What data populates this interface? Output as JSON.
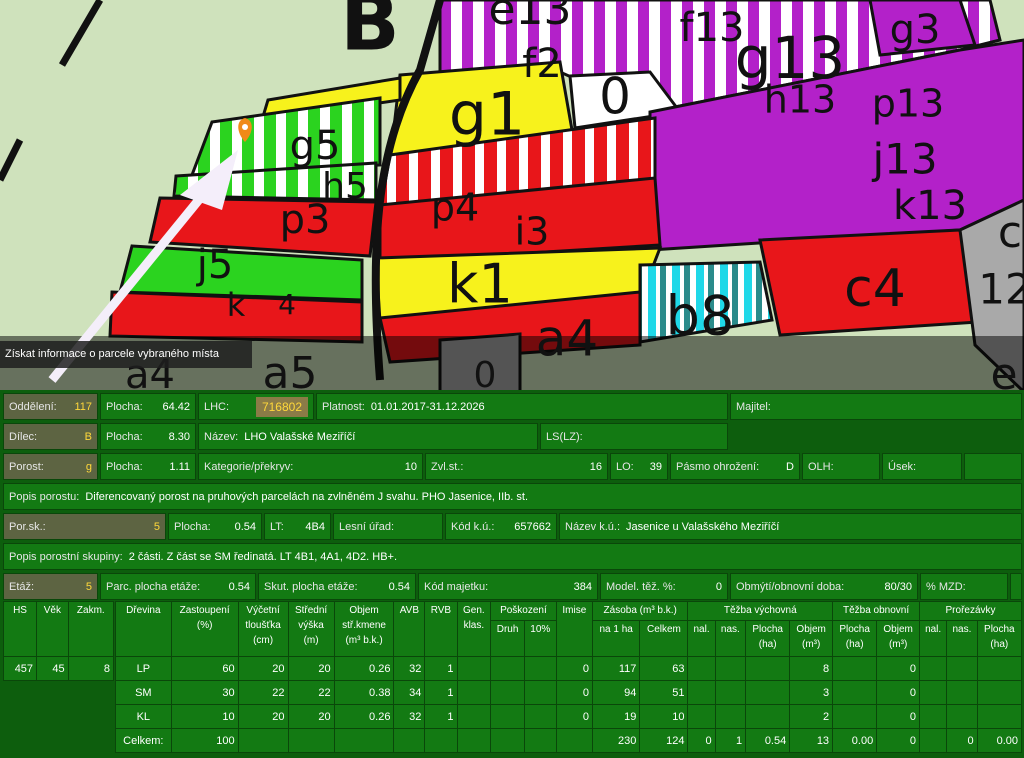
{
  "map": {
    "labels": [
      "B",
      "e13",
      "f13",
      "g13",
      "g3",
      "f2",
      "0",
      "g1",
      "h13",
      "p13",
      "g5",
      "h5",
      "j13",
      "p3",
      "p4",
      "i3",
      "k13",
      "c",
      "j5",
      "k1",
      "12",
      "b8",
      "c4",
      "k",
      "4",
      "a4",
      "a4",
      "a5",
      "0",
      "e"
    ]
  },
  "tooltip": "Získat informace o parcele vybraného místa",
  "fields": [
    {
      "label": "Oddělení:",
      "value": 117
    },
    {
      "label": "Plocha:",
      "value": 64.42
    },
    {
      "label": "LHC:",
      "value": 716802
    },
    {
      "label": "Platnost:",
      "value": "01.01.2017-31.12.2026"
    },
    {
      "label": "Majitel:"
    },
    {
      "label": "Dílec:",
      "value": "B"
    },
    {
      "label": "Plocha:",
      "value": "8.30"
    },
    {
      "label": "Název:",
      "value": "LHO Valašské Meziříčí"
    },
    {
      "label": "LS(LZ):"
    },
    {
      "label": "Porost:",
      "value": "g"
    },
    {
      "label": "Plocha:",
      "value": 1.11
    },
    {
      "label": "Kategorie/překryv:",
      "value": 10
    },
    {
      "label": "Zvl.st.:",
      "value": 16
    },
    {
      "label": "LO:",
      "value": 39
    },
    {
      "label": "Pásmo ohrožení:",
      "value": "D"
    },
    {
      "label": "OLH:"
    },
    {
      "label": "Úsek:"
    },
    {
      "label": "Popis porostu:",
      "value": "Diferencovaný porost na pruhových parcelách na zvlněném J svahu. PHO Jasenice, IIb. st."
    },
    {
      "label": "Por.sk.:",
      "value": 5
    },
    {
      "label": "Plocha:",
      "value": 0.54
    },
    {
      "label": "LT:",
      "value": "4B4"
    },
    {
      "label": "Lesní úřad:"
    },
    {
      "label": "Kód k.ú.:",
      "value": 657662
    },
    {
      "label": "Název k.ú.:",
      "value": "Jasenice u Valašského Meziříčí"
    },
    {
      "label": "Popis porostní skupiny:",
      "value": "2 části. Z část se SM ředinatá. LT 4B1, 4A1, 4D2. HB+."
    },
    {
      "label": "Etáž:",
      "value": 5
    },
    {
      "label": "Parc. plocha etáže:",
      "value": 0.54
    },
    {
      "label": "Skut. plocha etáže:",
      "value": 0.54
    },
    {
      "label": "Kód majetku:",
      "value": 384
    },
    {
      "label": "Model. těž. %:",
      "value": 0
    },
    {
      "label": "Obmýtí/obnovní doba:",
      "value": "80/30"
    },
    {
      "label": "% MZD:"
    }
  ],
  "side_table": {
    "columns": [
      "HS",
      "Věk",
      "Zakm."
    ],
    "row": [
      457,
      45,
      8
    ]
  },
  "table": {
    "head": [
      "Dřevina",
      "Zastoupení\n(%)",
      "Výčetní\ntloušťka\n(cm)",
      "Střední\nvýška\n(m)",
      "Objem\nstř.kmene\n(m³ b.k.)",
      "AVB",
      "RVB",
      "Gen.\nklas.",
      "Poškození",
      "Imise",
      "Zásoba (m³ b.k.)",
      "Těžba výchovná",
      "Těžba obnovní",
      "Prořezávky",
      "Druh",
      "10%",
      "na 1 ha",
      "Celkem",
      "nal.",
      "nas.",
      "Plocha\n(ha)",
      "Objem\n(m³)",
      "Plocha\n(ha)",
      "Objem\n(m³)",
      "nal.",
      "nas.",
      "Plocha\n(ha)"
    ],
    "rows": [
      [
        "LP",
        60,
        20,
        20,
        0.26,
        32,
        1,
        null,
        null,
        null,
        0,
        117,
        63,
        null,
        null,
        null,
        8,
        null,
        0,
        null,
        null,
        null
      ],
      [
        "SM",
        30,
        22,
        22,
        0.38,
        34,
        1,
        null,
        null,
        null,
        0,
        94,
        51,
        null,
        null,
        null,
        3,
        null,
        0,
        null,
        null,
        null
      ],
      [
        "KL",
        10,
        20,
        20,
        0.26,
        32,
        1,
        null,
        null,
        null,
        0,
        19,
        10,
        null,
        null,
        null,
        2,
        null,
        0,
        null,
        null,
        null
      ],
      [
        "Celkem:",
        100,
        null,
        null,
        null,
        null,
        null,
        null,
        null,
        null,
        null,
        230,
        124,
        0,
        1,
        0.54,
        13,
        "0.00",
        0,
        null,
        0,
        "0.00"
      ]
    ]
  }
}
